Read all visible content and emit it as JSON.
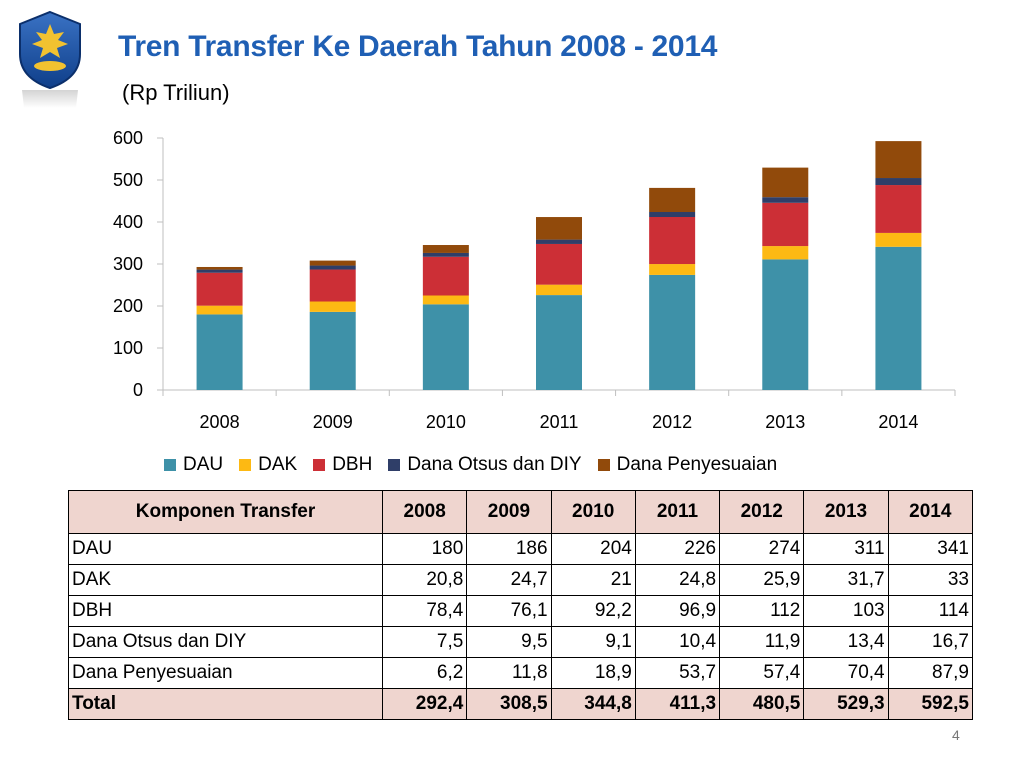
{
  "header": {
    "title": "Tren Transfer Ke Daerah Tahun 2008 - 2014",
    "subtitle": "(Rp Triliun)"
  },
  "colors": {
    "title": "#1f5fb4",
    "DAU": "#3e91a8",
    "DAK": "#fdb913",
    "DBH": "#cc2f36",
    "Dana Otsus dan DIY": "#2f3e68",
    "Dana Penyesuaian": "#914a0b",
    "table_header_bg": "#efd5cf"
  },
  "logo": {
    "icon": "garuda-emblem-icon"
  },
  "chart_data": {
    "type": "bar",
    "stacked": true,
    "categories": [
      "2008",
      "2009",
      "2010",
      "2011",
      "2012",
      "2013",
      "2014"
    ],
    "series": [
      {
        "name": "DAU",
        "values": [
          180,
          186,
          204,
          226,
          274,
          311,
          341
        ]
      },
      {
        "name": "DAK",
        "values": [
          20.8,
          24.7,
          21,
          24.8,
          25.9,
          31.7,
          33
        ]
      },
      {
        "name": "DBH",
        "values": [
          78.4,
          76.1,
          92.2,
          96.9,
          112,
          103,
          114
        ]
      },
      {
        "name": "Dana Otsus dan DIY",
        "values": [
          7.5,
          9.5,
          9.1,
          10.4,
          11.9,
          13.4,
          16.7
        ]
      },
      {
        "name": "Dana Penyesuaian",
        "values": [
          6.2,
          11.8,
          18.9,
          53.7,
          57.4,
          70.4,
          87.9
        ]
      }
    ],
    "ylim": [
      0,
      600
    ],
    "yticks": [
      "0",
      "100",
      "200",
      "300",
      "400",
      "500",
      "600"
    ],
    "grid": false,
    "legend_position": "bottom"
  },
  "table": {
    "headers": [
      "Komponen Transfer",
      "2008",
      "2009",
      "2010",
      "2011",
      "2012",
      "2013",
      "2014"
    ],
    "rows": [
      [
        "DAU",
        "180",
        "186",
        "204",
        "226",
        "274",
        "311",
        "341"
      ],
      [
        "DAK",
        "20,8",
        "24,7",
        "21",
        "24,8",
        "25,9",
        "31,7",
        "33"
      ],
      [
        "DBH",
        "78,4",
        "76,1",
        "92,2",
        "96,9",
        "112",
        "103",
        "114"
      ],
      [
        "Dana Otsus dan DIY",
        "7,5",
        "9,5",
        "9,1",
        "10,4",
        "11,9",
        "13,4",
        "16,7"
      ],
      [
        "Dana Penyesuaian",
        "6,2",
        "11,8",
        "18,9",
        "53,7",
        "57,4",
        "70,4",
        "87,9"
      ]
    ],
    "total": [
      "Total",
      "292,4",
      "308,5",
      "344,8",
      "411,3",
      "480,5",
      "529,3",
      "592,5"
    ]
  },
  "footer": {
    "page_number": "4"
  }
}
